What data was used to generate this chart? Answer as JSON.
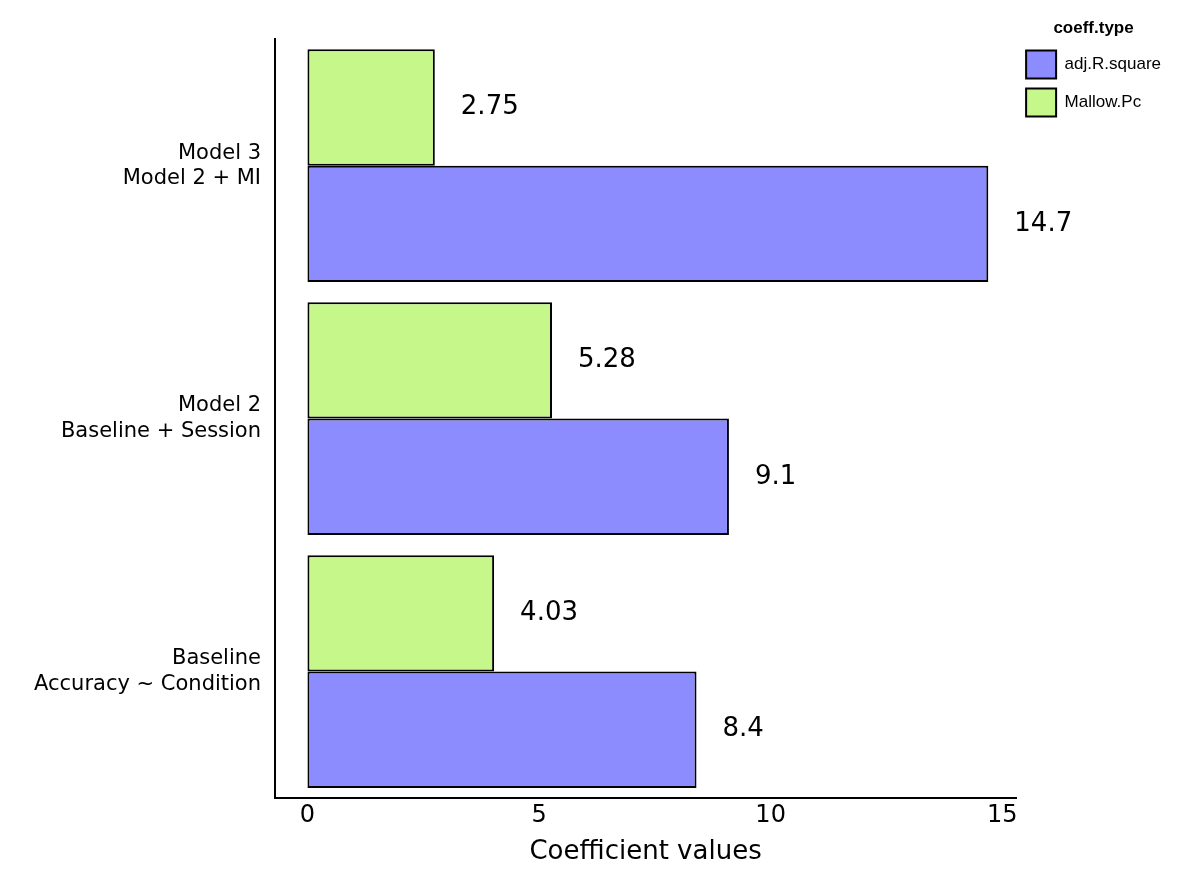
{
  "chart_data": {
    "type": "bar",
    "orientation": "horizontal",
    "xlabel": "Coefficient values",
    "legend_title": "coeff.type",
    "legend": "top right",
    "categories": [
      "Model 3\nModel 2 + MI",
      "Model 2\nBaseline + Session",
      "Baseline\nAccuracy ~ Condition"
    ],
    "series": [
      {
        "name": "adj.R.square",
        "color": "#8c8cff",
        "values": [
          14.7,
          9.1,
          8.4
        ]
      },
      {
        "name": "Mallow.Pc",
        "color": "#c5f78a",
        "values": [
          2.75,
          5.28,
          4.03
        ]
      }
    ],
    "xlim": [
      -0.7,
      15.3
    ],
    "xticks": [
      0,
      5,
      10,
      15
    ],
    "grid": false,
    "data_labels": true
  }
}
